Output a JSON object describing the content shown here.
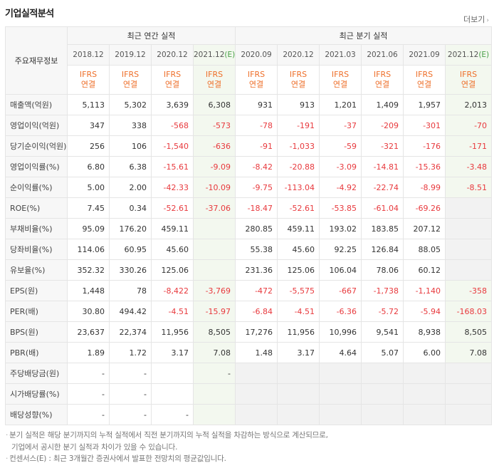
{
  "header": {
    "title": "기업실적분석",
    "more_label": "더보기",
    "more_arrow": "›"
  },
  "table": {
    "row_header_label": "주요재무정보",
    "group_annual": "최근 연간 실적",
    "group_quarter": "최근 분기 실적",
    "periods": [
      "2018.12",
      "2019.12",
      "2020.12",
      "2021.12",
      "2020.09",
      "2020.12",
      "2021.03",
      "2021.06",
      "2021.09",
      "2021.12"
    ],
    "estimate_tag": "(E)",
    "ifrs_line1": "IFRS",
    "ifrs_line2": "연결",
    "rows": [
      {
        "label": "매출액(억원)",
        "values": [
          "5,113",
          "5,302",
          "3,639",
          "6,308",
          "931",
          "913",
          "1,201",
          "1,409",
          "1,957",
          "2,013"
        ]
      },
      {
        "label": "영업이익(억원)",
        "values": [
          "347",
          "338",
          "-568",
          "-573",
          "-78",
          "-191",
          "-37",
          "-209",
          "-301",
          "-70"
        ]
      },
      {
        "label": "당기순이익(억원)",
        "values": [
          "256",
          "106",
          "-1,540",
          "-636",
          "-91",
          "-1,033",
          "-59",
          "-321",
          "-176",
          "-171"
        ]
      },
      {
        "label": "영업이익률(%)",
        "values": [
          "6.80",
          "6.38",
          "-15.61",
          "-9.09",
          "-8.42",
          "-20.88",
          "-3.09",
          "-14.81",
          "-15.36",
          "-3.48"
        ]
      },
      {
        "label": "순이익률(%)",
        "values": [
          "5.00",
          "2.00",
          "-42.33",
          "-10.09",
          "-9.75",
          "-113.04",
          "-4.92",
          "-22.74",
          "-8.99",
          "-8.51"
        ]
      },
      {
        "label": "ROE(%)",
        "values": [
          "7.45",
          "0.34",
          "-52.61",
          "-37.06",
          "-18.47",
          "-52.61",
          "-53.85",
          "-61.04",
          "-69.26",
          ""
        ]
      },
      {
        "label": "부채비율(%)",
        "values": [
          "95.09",
          "176.20",
          "459.11",
          "",
          "280.85",
          "459.11",
          "193.02",
          "183.85",
          "207.12",
          ""
        ]
      },
      {
        "label": "당좌비율(%)",
        "values": [
          "114.06",
          "60.95",
          "45.60",
          "",
          "55.38",
          "45.60",
          "92.25",
          "126.84",
          "88.05",
          ""
        ]
      },
      {
        "label": "유보율(%)",
        "values": [
          "352.32",
          "330.26",
          "125.06",
          "",
          "231.36",
          "125.06",
          "106.04",
          "78.06",
          "60.12",
          ""
        ]
      },
      {
        "label": "EPS(원)",
        "values": [
          "1,448",
          "78",
          "-8,422",
          "-3,769",
          "-472",
          "-5,575",
          "-667",
          "-1,738",
          "-1,140",
          "-358"
        ]
      },
      {
        "label": "PER(배)",
        "values": [
          "30.80",
          "494.42",
          "-4.51",
          "-15.97",
          "-6.84",
          "-4.51",
          "-6.36",
          "-5.72",
          "-5.94",
          "-168.03"
        ]
      },
      {
        "label": "BPS(원)",
        "values": [
          "23,637",
          "22,374",
          "11,956",
          "8,505",
          "17,276",
          "11,956",
          "10,996",
          "9,541",
          "8,938",
          "8,505"
        ]
      },
      {
        "label": "PBR(배)",
        "values": [
          "1.89",
          "1.72",
          "3.17",
          "7.08",
          "1.48",
          "3.17",
          "4.64",
          "5.07",
          "6.00",
          "7.08"
        ]
      },
      {
        "label": "주당배당금(원)",
        "values": [
          "-",
          "-",
          "",
          "-",
          "",
          "",
          "",
          "",
          "",
          ""
        ]
      },
      {
        "label": "시가배당률(%)",
        "values": [
          "-",
          "-",
          "",
          "",
          "",
          "",
          "",
          "",
          "",
          ""
        ]
      },
      {
        "label": "배당성향(%)",
        "values": [
          "-",
          "-",
          "-",
          "",
          "",
          "",
          "",
          "",
          "",
          ""
        ]
      }
    ]
  },
  "notes": {
    "line1": "분기 실적은 해당 분기까지의 누적 실적에서 직전 분기까지의 누적 실적을 차감하는 방식으로 계산되므로,",
    "line2": "기업에서 공시한 분기 실적과 차이가 있을 수 있습니다.",
    "line3": "컨센서스(E) : 최근 3개월간 증권사에서 발표한 전망치의 평균값입니다."
  },
  "colors": {
    "negative": "#e8393d",
    "ifrs": "#ee6f2a",
    "estimate_bg": "#f3f8ef",
    "estimate_tag": "#48a047"
  }
}
